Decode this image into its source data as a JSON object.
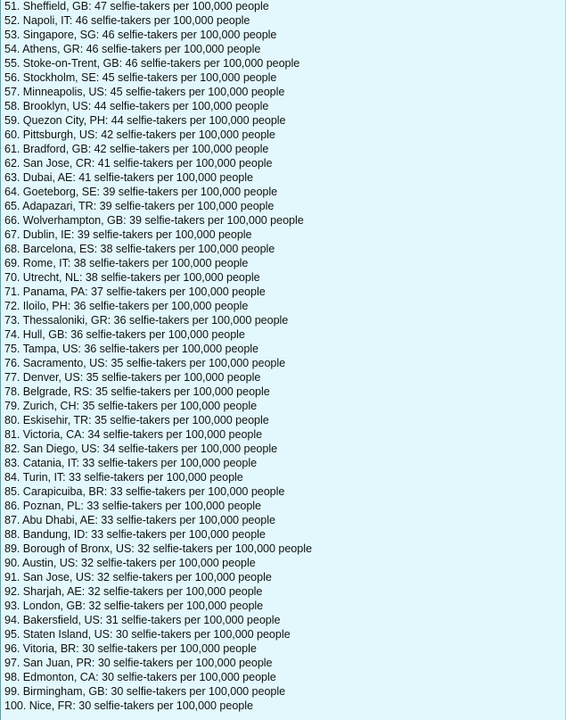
{
  "ranking": {
    "items": [
      "51. Sheffield, GB: 47 selfie-takers per 100,000 people",
      "52. Napoli, IT: 46 selfie-takers per 100,000 people",
      "53. Singapore, SG: 46 selfie-takers per 100,000 people",
      "54. Athens, GR: 46 selfie-takers per 100,000 people",
      "55. Stoke-on-Trent, GB: 46 selfie-takers per 100,000 people",
      "56. Stockholm, SE: 45 selfie-takers per 100,000 people",
      "57. Minneapolis, US: 45 selfie-takers per 100,000 people",
      "58. Brooklyn, US: 44 selfie-takers per 100,000 people",
      "59. Quezon City, PH: 44 selfie-takers per 100,000 people",
      "60. Pittsburgh, US: 42 selfie-takers per 100,000 people",
      "61. Bradford, GB: 42 selfie-takers per 100,000 people",
      "62. San Jose, CR: 41 selfie-takers per 100,000 people",
      "63. Dubai, AE: 41 selfie-takers per 100,000 people",
      "64. Goeteborg, SE: 39 selfie-takers per 100,000 people",
      "65. Adapazari, TR: 39 selfie-takers per 100,000 people",
      "66. Wolverhampton, GB: 39 selfie-takers per 100,000 people",
      "67. Dublin, IE: 39 selfie-takers per 100,000 people",
      "68. Barcelona, ES: 38 selfie-takers per 100,000 people",
      "69. Rome, IT: 38 selfie-takers per 100,000 people",
      "70. Utrecht, NL: 38 selfie-takers per 100,000 people",
      "71. Panama, PA: 37 selfie-takers per 100,000 people",
      "72. Iloilo, PH: 36 selfie-takers per 100,000 people",
      "73. Thessaloniki, GR: 36 selfie-takers per 100,000 people",
      "74. Hull, GB: 36 selfie-takers per 100,000 people",
      "75. Tampa, US: 36 selfie-takers per 100,000 people",
      "76. Sacramento, US: 35 selfie-takers per 100,000 people",
      "77. Denver, US: 35 selfie-takers per 100,000 people",
      "78. Belgrade, RS: 35 selfie-takers per 100,000 people",
      "79. Zurich, CH: 35 selfie-takers per 100,000 people",
      "80. Eskisehir, TR: 35 selfie-takers per 100,000 people",
      "81. Victoria, CA: 34 selfie-takers per 100,000 people",
      "82. San Diego, US: 34 selfie-takers per 100,000 people",
      "83. Catania, IT: 33 selfie-takers per 100,000 people",
      "84. Turin, IT: 33 selfie-takers per 100,000 people",
      "85. Carapicuiba, BR: 33 selfie-takers per 100,000 people",
      "86. Poznan, PL: 33 selfie-takers per 100,000 people",
      "87. Abu Dhabi, AE: 33 selfie-takers per 100,000 people",
      "88. Bandung, ID: 33 selfie-takers per 100,000 people",
      "89. Borough of Bronx, US: 32 selfie-takers per 100,000 people",
      "90. Austin, US: 32 selfie-takers per 100,000 people",
      "91. San Jose, US: 32 selfie-takers per 100,000 people",
      "92. Sharjah, AE: 32 selfie-takers per 100,000 people",
      "93. London, GB: 32 selfie-takers per 100,000 people",
      "94. Bakersfield, US: 31 selfie-takers per 100,000 people",
      "95. Staten Island, US: 30 selfie-takers per 100,000 people",
      "96. Vitoria, BR: 30 selfie-takers per 100,000 people",
      "97. San Juan, PR: 30 selfie-takers per 100,000 people",
      "98. Edmonton, CA: 30 selfie-takers per 100,000 people",
      "99. Birmingham, GB: 30 selfie-takers per 100,000 people",
      "100. Nice, FR: 30 selfie-takers per 100,000 people"
    ]
  },
  "colors": {
    "background": "#e2f8fc",
    "border": "#4aa6b0",
    "text": "#111111"
  }
}
